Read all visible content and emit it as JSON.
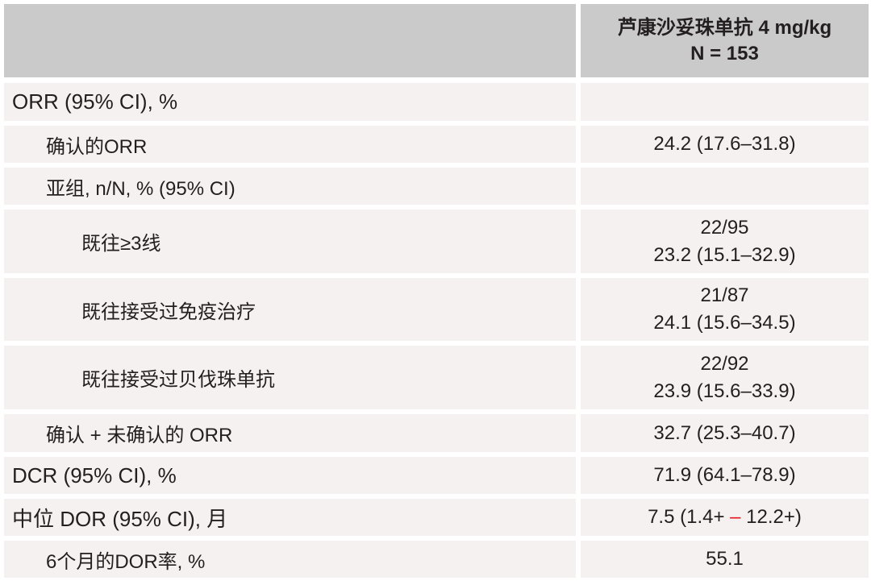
{
  "header": {
    "col_title": "芦康沙妥珠单抗 4 mg/kg",
    "col_n": "N = 153"
  },
  "rows": [
    {
      "label": "ORR (95% CI), %",
      "v1": "",
      "v2": ""
    },
    {
      "label": "确认的ORR",
      "v1": "24.2 (17.6–31.8)",
      "v2": ""
    },
    {
      "label": "亚组, n/N, % (95% CI)",
      "v1": "",
      "v2": ""
    },
    {
      "label": "既往≥3线",
      "v1": "22/95",
      "v2": "23.2 (15.1–32.9)"
    },
    {
      "label": "既往接受过免疫治疗",
      "v1": "21/87",
      "v2": "24.1 (15.6–34.5)"
    },
    {
      "label": "既往接受过贝伐珠单抗",
      "v1": "22/92",
      "v2": "23.9 (15.6–33.9)"
    },
    {
      "label": "确认 + 未确认的 ORR",
      "v1": "32.7 (25.3–40.7)",
      "v2": ""
    },
    {
      "label": "DCR (95% CI), %",
      "v1": "71.9 (64.1–78.9)",
      "v2": ""
    },
    {
      "label": "中位 DOR (95% CI), 月",
      "v1_a": "7.5 (1.4+ ",
      "v1_dash": "–",
      "v1_b": " 12.2+)"
    },
    {
      "label": "6个月的DOR率, %",
      "v1": "55.1",
      "v2": ""
    }
  ],
  "colors": {
    "header_bg": "#cbcaca",
    "row_bg": "#f5f1f0",
    "dash": "#e8141c"
  }
}
